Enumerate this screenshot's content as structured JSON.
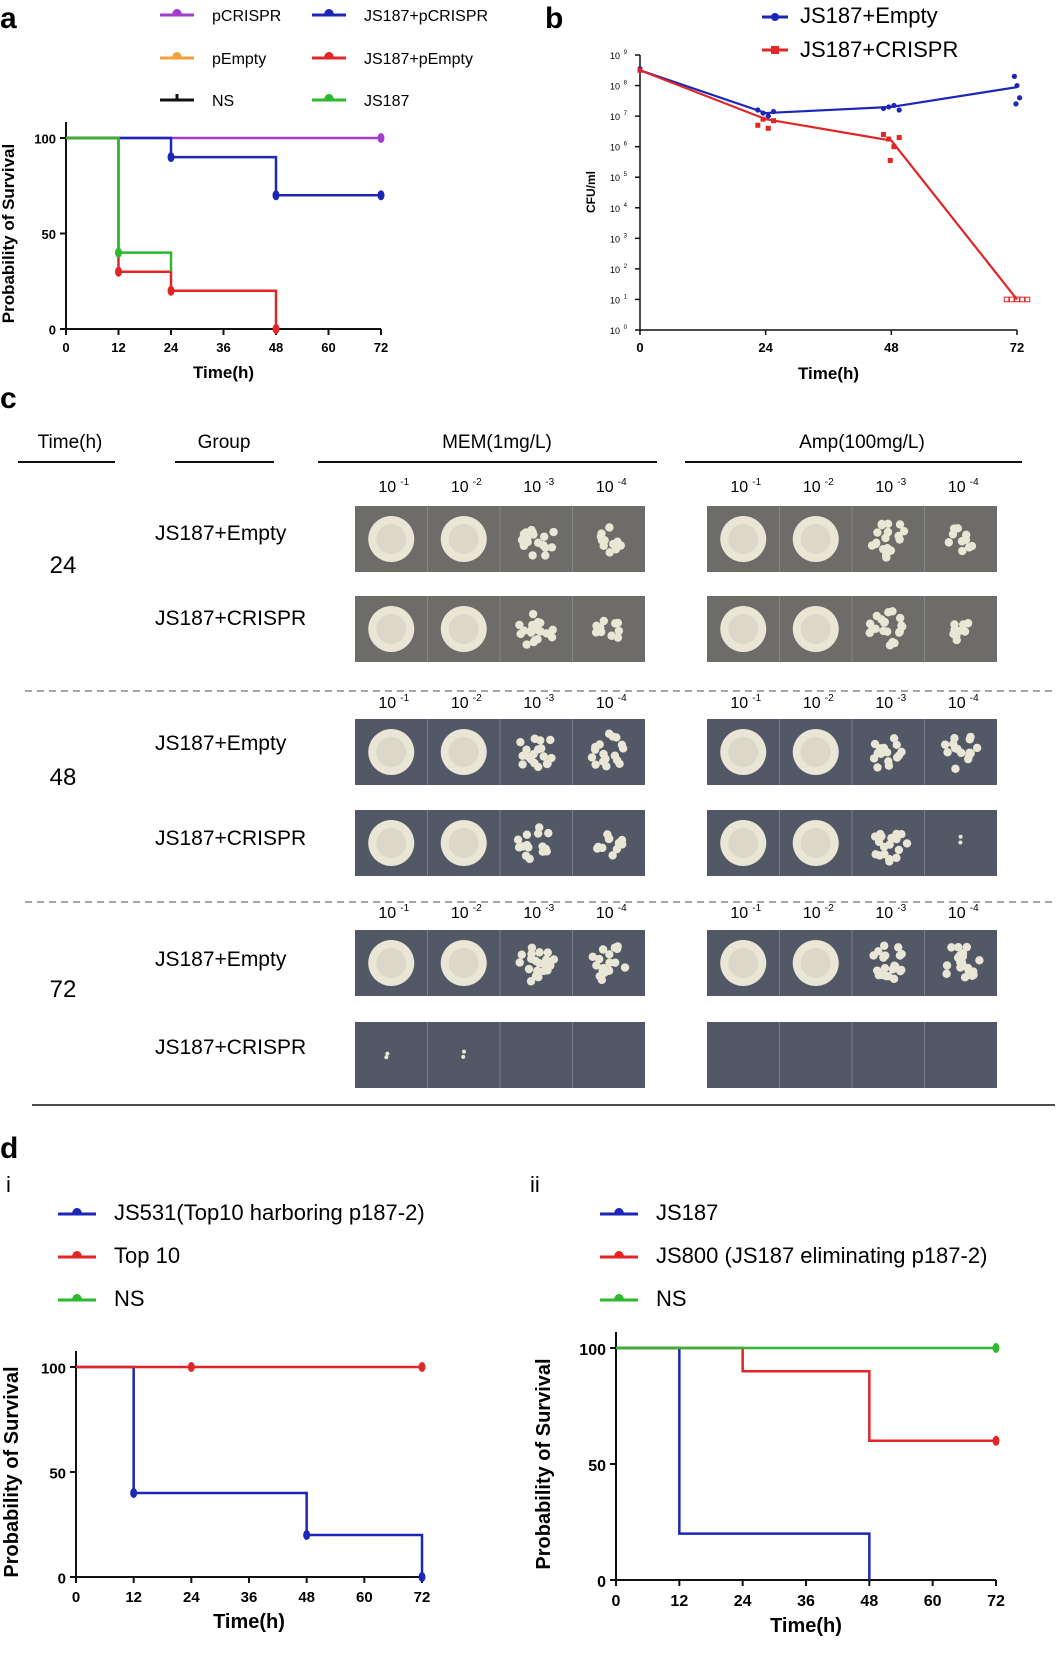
{
  "colors": {
    "purple": "#a23ecb",
    "orange": "#f2a23a",
    "black": "#111111",
    "blue": "#1c26b8",
    "red": "#e02626",
    "green": "#2db82d",
    "plate_bg": "#525866",
    "colony": "#e9e6d6"
  },
  "panels": {
    "a": "a",
    "b": "b",
    "c": "c",
    "d": "d",
    "d_i": "i",
    "d_ii": "ii"
  },
  "chart_data": [
    {
      "id": "a",
      "type": "line",
      "step": true,
      "xlabel": "Time(h)",
      "ylabel": "Probability of Survival",
      "xlim": [
        0,
        72
      ],
      "ylim": [
        0,
        100
      ],
      "xticks": [
        "0",
        "12",
        "24",
        "36",
        "48",
        "60",
        "72"
      ],
      "yticks": [
        "0",
        "50",
        "100"
      ],
      "legend_position": "top",
      "series": [
        {
          "name": "pCRISPR",
          "color": "purple",
          "x": [
            0,
            72
          ],
          "y": [
            100,
            100
          ],
          "marks": [
            [
              72,
              100
            ]
          ]
        },
        {
          "name": "JS187+pCRISPR",
          "color": "blue",
          "x": [
            0,
            24,
            48,
            72
          ],
          "y": [
            100,
            90,
            70,
            70
          ],
          "marks": [
            [
              24,
              90
            ],
            [
              48,
              70
            ],
            [
              72,
              70
            ]
          ]
        },
        {
          "name": "pEmpty",
          "color": "orange",
          "x": [],
          "y": [],
          "marks": []
        },
        {
          "name": "JS187+pEmpty",
          "color": "red",
          "x": [
            0,
            12,
            24,
            48
          ],
          "y": [
            100,
            30,
            20,
            0
          ],
          "marks": [
            [
              12,
              30
            ],
            [
              24,
              20
            ],
            [
              48,
              0
            ]
          ]
        },
        {
          "name": "NS",
          "color": "black",
          "x": [],
          "y": [],
          "marks": []
        },
        {
          "name": "JS187",
          "color": "green",
          "x": [
            0,
            12,
            24
          ],
          "y": [
            100,
            40,
            30
          ],
          "marks": [
            [
              12,
              40
            ]
          ]
        }
      ]
    },
    {
      "id": "b",
      "type": "line",
      "log_y": true,
      "xlabel": "Time(h)",
      "ylabel": "CFU/ml",
      "xlim": [
        0,
        72
      ],
      "ylim_exp": [
        0,
        9
      ],
      "xticks": [
        "0",
        "24",
        "48",
        "72"
      ],
      "legend_position": "top-right",
      "series": [
        {
          "name": "JS187+Empty",
          "color": "blue",
          "x": [
            0,
            24,
            48,
            72
          ],
          "log10_y": [
            8.5,
            7.1,
            7.3,
            7.95
          ],
          "points": [
            [
              0,
              8.55
            ],
            [
              0,
              8.5
            ],
            [
              22.5,
              7.2
            ],
            [
              23.5,
              7.1
            ],
            [
              24.5,
              7.0
            ],
            [
              25.5,
              7.15
            ],
            [
              46.5,
              7.25
            ],
            [
              47.5,
              7.3
            ],
            [
              48.5,
              7.35
            ],
            [
              49.5,
              7.2
            ],
            [
              71.5,
              8.3
            ],
            [
              72,
              8.0
            ],
            [
              72.5,
              7.6
            ],
            [
              71.8,
              7.4
            ]
          ]
        },
        {
          "name": "JS187+CRISPR",
          "color": "red",
          "x": [
            0,
            24,
            48,
            72
          ],
          "log10_y": [
            8.5,
            6.9,
            6.2,
            1.0
          ],
          "points": [
            [
              0,
              8.5
            ],
            [
              22.5,
              6.7
            ],
            [
              23.5,
              6.9
            ],
            [
              24.5,
              6.6
            ],
            [
              25.5,
              6.85
            ],
            [
              46.5,
              6.4
            ],
            [
              47.5,
              6.25
            ],
            [
              48.5,
              6.0
            ],
            [
              49.5,
              6.3
            ],
            [
              47.8,
              5.55
            ],
            [
              70,
              1.0
            ],
            [
              71,
              1.0
            ],
            [
              72,
              1.0
            ],
            [
              73,
              1.0
            ],
            [
              74,
              1.0
            ]
          ]
        }
      ],
      "ytick_exponents": [
        "0",
        "1",
        "2",
        "3",
        "4",
        "5",
        "6",
        "7",
        "8",
        "9"
      ],
      "ytick_base": "10"
    },
    {
      "id": "d_i",
      "type": "line",
      "step": true,
      "xlabel": "Time(h)",
      "ylabel": "Probability of Survival",
      "xlim": [
        0,
        72
      ],
      "ylim": [
        0,
        100
      ],
      "xticks": [
        "0",
        "12",
        "24",
        "36",
        "48",
        "60",
        "72"
      ],
      "yticks": [
        "0",
        "50",
        "100"
      ],
      "legend_position": "top",
      "series": [
        {
          "name": "JS531(Top10 harboring p187-2)",
          "color": "blue",
          "x": [
            0,
            12,
            48,
            72
          ],
          "y": [
            100,
            40,
            20,
            0
          ],
          "marks": [
            [
              12,
              40
            ],
            [
              48,
              20
            ],
            [
              72,
              0
            ]
          ]
        },
        {
          "name": "Top 10",
          "color": "red",
          "x": [
            0,
            72
          ],
          "y": [
            100,
            100
          ],
          "marks": [
            [
              24,
              100
            ],
            [
              72,
              100
            ]
          ]
        },
        {
          "name": "NS",
          "color": "green",
          "x": [],
          "y": [],
          "marks": []
        }
      ]
    },
    {
      "id": "d_ii",
      "type": "line",
      "step": true,
      "xlabel": "Time(h)",
      "ylabel": "Probability of Survival",
      "xlim": [
        0,
        72
      ],
      "ylim": [
        0,
        100
      ],
      "xticks": [
        "0",
        "12",
        "24",
        "36",
        "48",
        "60",
        "72"
      ],
      "yticks": [
        "0",
        "50",
        "100"
      ],
      "legend_position": "top",
      "series": [
        {
          "name": "JS187",
          "color": "blue",
          "x": [
            0,
            12,
            48
          ],
          "y": [
            100,
            20,
            0
          ],
          "marks": []
        },
        {
          "name": "JS800 (JS187 eliminating p187-2)",
          "color": "red",
          "x": [
            0,
            24,
            48,
            72
          ],
          "y": [
            100,
            90,
            60,
            60
          ],
          "marks": [
            [
              72,
              60
            ]
          ]
        },
        {
          "name": "NS",
          "color": "green",
          "x": [
            0,
            72
          ],
          "y": [
            100,
            100
          ],
          "marks": [
            [
              72,
              100
            ]
          ]
        }
      ]
    }
  ],
  "plates": {
    "headers": {
      "time": "Time(h)",
      "group": "Group",
      "mem": "MEM(1mg/L)",
      "amp": "Amp(100mg/L)"
    },
    "dilutions": [
      "10",
      "10",
      "10",
      "10"
    ],
    "dilution_exponents": [
      "-1",
      "-2",
      "-3",
      "-4"
    ],
    "times": [
      "24",
      "48",
      "72"
    ],
    "groups": [
      "JS187+Empty",
      "JS187+CRISPR"
    ],
    "growth": {
      "24": {
        "JS187+Empty": {
          "mem": [
            1,
            1,
            0.8,
            0.5
          ],
          "amp": [
            1,
            1,
            0.8,
            0.45
          ]
        },
        "JS187+CRISPR": {
          "mem": [
            1,
            1,
            0.85,
            0.45
          ],
          "amp": [
            1,
            1,
            0.9,
            0.4
          ]
        }
      },
      "48": {
        "JS187+Empty": {
          "mem": [
            1,
            1,
            0.8,
            0.75
          ],
          "amp": [
            1,
            1,
            0.75,
            0.7
          ]
        },
        "JS187+CRISPR": {
          "mem": [
            1,
            1,
            0.75,
            0.55
          ],
          "amp": [
            1,
            1,
            0.8,
            0.1
          ]
        }
      },
      "72": {
        "JS187+Empty": {
          "mem": [
            1,
            1,
            0.9,
            0.75
          ],
          "amp": [
            1,
            1,
            0.9,
            0.85
          ]
        },
        "JS187+CRISPR": {
          "mem": [
            0.05,
            0.05,
            0,
            0
          ],
          "amp": [
            0,
            0,
            0,
            0
          ]
        }
      }
    }
  }
}
